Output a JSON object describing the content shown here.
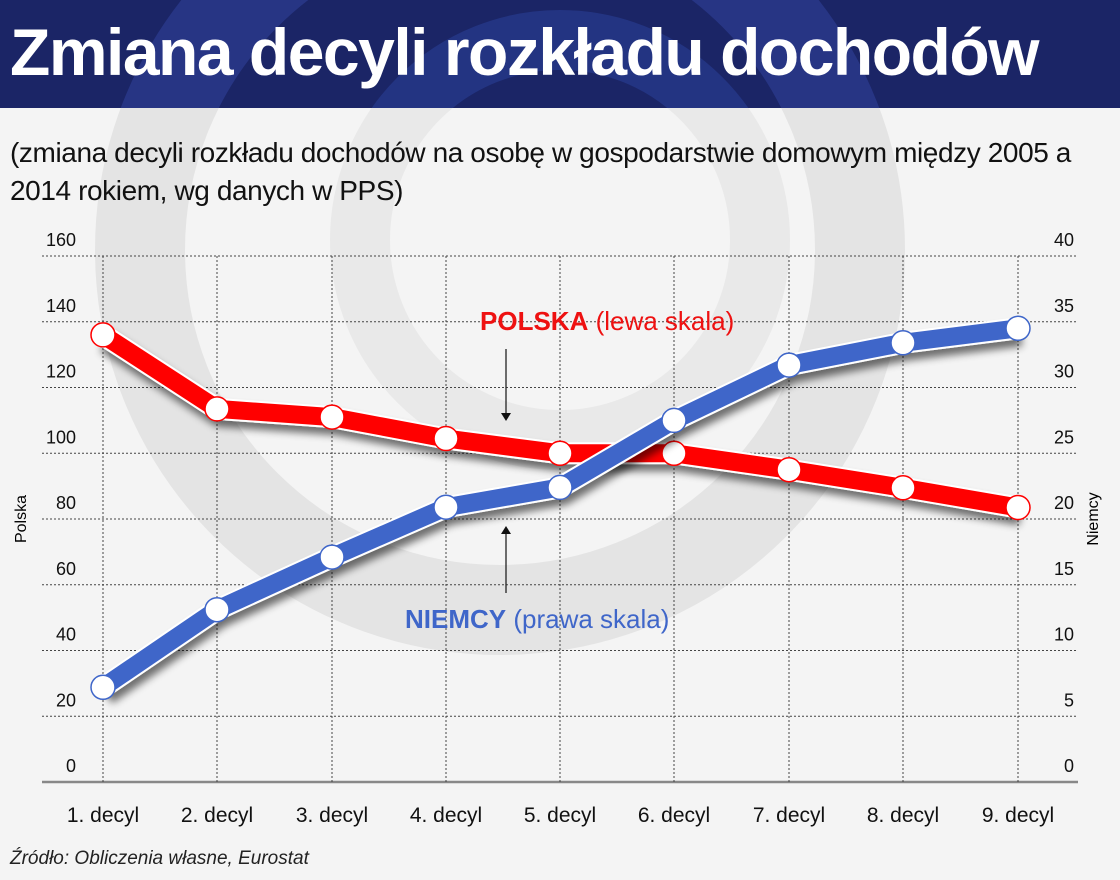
{
  "header": {
    "title": "Zmiana decyli rozkładu dochodów",
    "subtitle": "(zmiana decyli rozkładu dochodów na osobę w gospodarstwie domowym między 2005 a 2014 rokiem, wg danych w PPS)"
  },
  "footer": {
    "source": "Źródło: Obliczenia własne, Eurostat"
  },
  "colors": {
    "title_bg": "#0a145a",
    "polska": "#ff0000",
    "niemcy": "#3f66c9",
    "background": "#f4f4f4"
  },
  "annotations": {
    "polska_bold": "POLSKA",
    "polska_rest": " (lewa skala)",
    "niemcy_bold": "NIEMCY",
    "niemcy_rest": " (prawa skala)"
  },
  "chart_data": {
    "type": "line",
    "title": "Zmiana decyli rozkładu dochodów",
    "subtitle": "(zmiana decyli rozkładu dochodów na osobę w gospodarstwie domowym między 2005 a 2014 rokiem, wg danych w PPS)",
    "categories": [
      "1. decyl",
      "2. decyl",
      "3. decyl",
      "4. decyl",
      "5. decyl",
      "6. decyl",
      "7. decyl",
      "8. decyl",
      "9. decyl"
    ],
    "xlabel": "",
    "ylabel": "Polska",
    "y2label": "Niemcy",
    "ylim": [
      0,
      160
    ],
    "y2lim": [
      0,
      40
    ],
    "yticks": [
      0,
      20,
      40,
      60,
      80,
      100,
      120,
      140,
      160
    ],
    "y2ticks": [
      0,
      5,
      10,
      15,
      20,
      25,
      30,
      35,
      40
    ],
    "grid": true,
    "series": [
      {
        "name": "POLSKA (lewa skala)",
        "axis": "left",
        "color": "#ff0000",
        "values": [
          136,
          113.5,
          111,
          104.5,
          100,
          100,
          95,
          89.5,
          83.5
        ]
      },
      {
        "name": "NIEMCY (prawa skala)",
        "axis": "right",
        "color": "#3f66c9",
        "values": [
          7.2,
          13.1,
          17.1,
          20.9,
          22.4,
          27.5,
          31.7,
          33.4,
          34.5
        ]
      }
    ],
    "source": "Źródło: Obliczenia własne, Eurostat"
  }
}
